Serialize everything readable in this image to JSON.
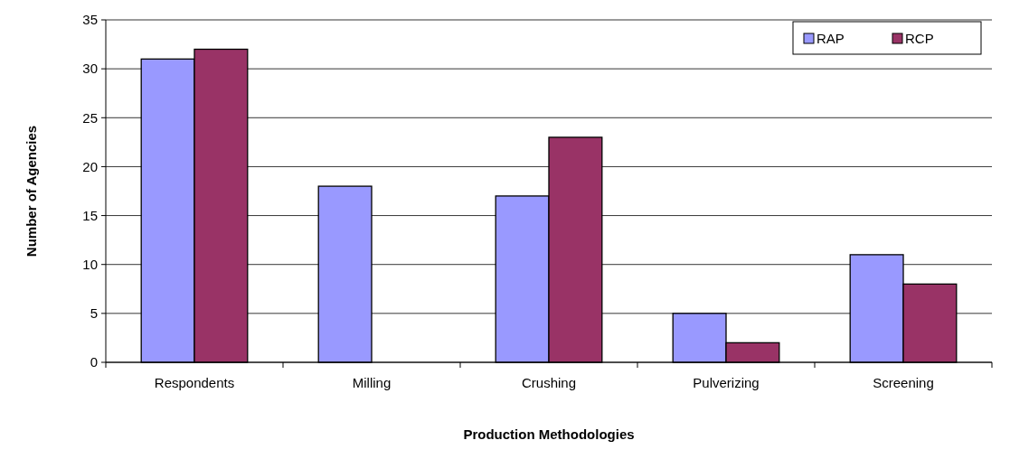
{
  "chart_data": {
    "type": "bar",
    "xlabel": "Production Methodologies",
    "ylabel": "Number of Agencies",
    "categories": [
      "Respondents",
      "Milling",
      "Crushing",
      "Pulverizing",
      "Screening"
    ],
    "series": [
      {
        "name": "RAP",
        "color": "#9999ff",
        "values": [
          31,
          18,
          17,
          5,
          11
        ]
      },
      {
        "name": "RCP",
        "color": "#993366",
        "values": [
          32,
          0,
          23,
          2,
          8
        ]
      }
    ],
    "ylim": [
      0,
      35
    ],
    "yticks": [
      0,
      5,
      10,
      15,
      20,
      25,
      30,
      35
    ],
    "grid": "y",
    "legend": "top right"
  }
}
